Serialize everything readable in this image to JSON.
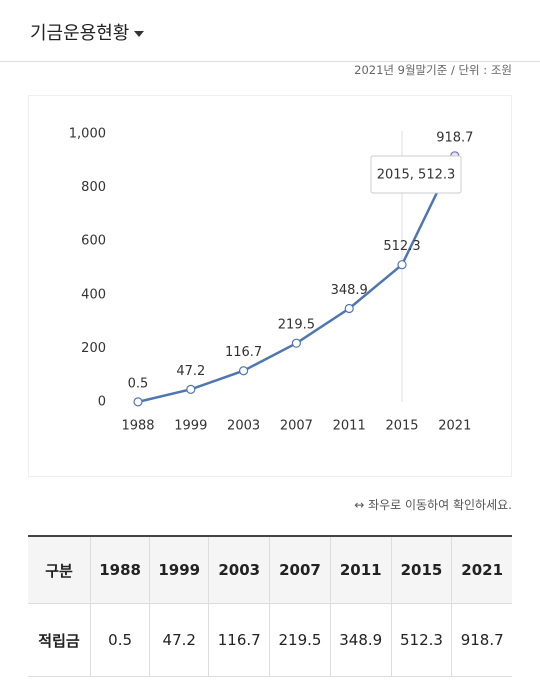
{
  "header": {
    "title": "기금운용현황"
  },
  "note": "2021년 9월말기준 / 단위 : 조원",
  "chart_data": {
    "type": "line",
    "categories": [
      "1988",
      "1999",
      "2003",
      "2007",
      "2011",
      "2015",
      "2021"
    ],
    "values": [
      0.5,
      47.2,
      116.7,
      219.5,
      348.9,
      512.3,
      918.7
    ],
    "color": "#4f76b2",
    "ylim": [
      0,
      1000
    ],
    "yticks": [
      0,
      200,
      400,
      600,
      800,
      {
        "value": 1000,
        "label": "1,000"
      }
    ],
    "tooltip": "2015, 512.3"
  },
  "hint": "↔ 좌우로 이동하여 확인하세요.",
  "table": {
    "rows": [
      [
        "구분",
        "1988",
        "1999",
        "2003",
        "2007",
        "2011",
        "2015",
        "2021"
      ],
      [
        "적립금",
        "0.5",
        "47.2",
        "116.7",
        "219.5",
        "348.9",
        "512.3",
        "918.7"
      ]
    ]
  }
}
